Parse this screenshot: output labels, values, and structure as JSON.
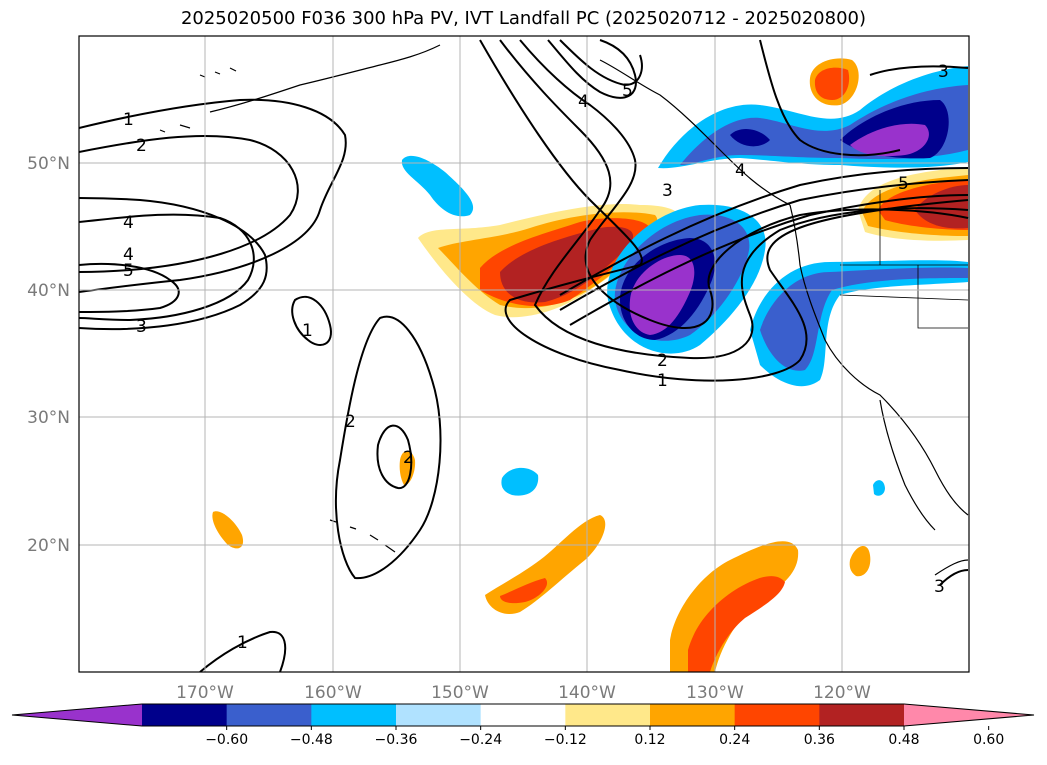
{
  "title": "2025020500 F036 300 hPa PV, IVT Landfall PC (2025020712 - 2025020800)",
  "longitude_labels": [
    "170°W",
    "160°W",
    "150°W",
    "140°W",
    "130°W",
    "120°W"
  ],
  "latitude_labels": [
    "50°N",
    "40°N",
    "30°N",
    "20°N"
  ],
  "colorbar": {
    "tick_labels": [
      "−0.60",
      "−0.48",
      "−0.36",
      "−0.24",
      "−0.12",
      "0.12",
      "0.24",
      "0.36",
      "0.48",
      "0.60"
    ],
    "colors": [
      "#9932cc",
      "#00008b",
      "#3a5fcd",
      "#00bfff",
      "#b0e2ff",
      "#ffffff",
      "#ffe88a",
      "#ffa500",
      "#ff4500",
      "#b22222",
      "#ff88aa"
    ]
  },
  "contour_labels": [
    "1",
    "2",
    "4",
    "4",
    "5",
    "3",
    "1",
    "2",
    "1",
    "2",
    "4",
    "5",
    "3",
    "4",
    "3",
    "5",
    "2",
    "1",
    "3"
  ],
  "colors": {
    "land_outline": "#000000",
    "grid": "#b4b4b4",
    "contour": "#000000"
  }
}
